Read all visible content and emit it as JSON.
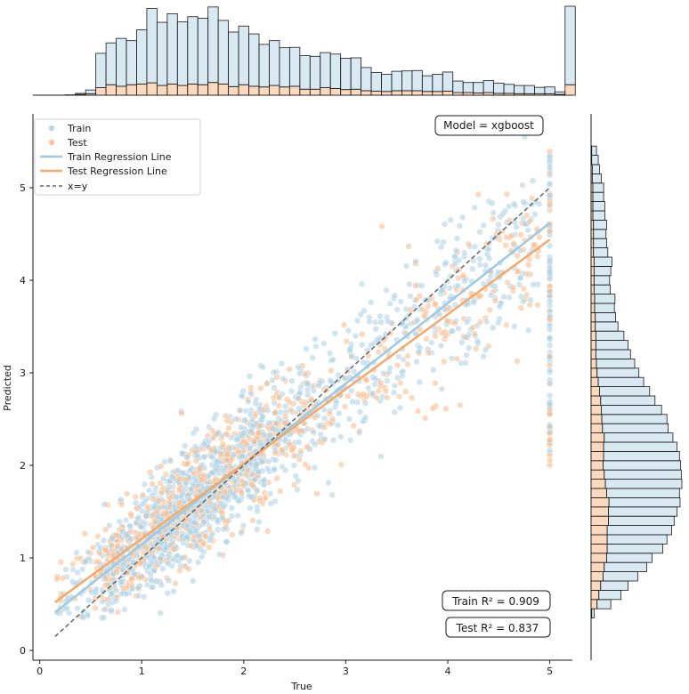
{
  "chart_data": {
    "type": "scatter",
    "title": "",
    "xlabel": "True",
    "ylabel": "Predicted",
    "xlim": [
      -0.1,
      5.2
    ],
    "ylim": [
      -0.1,
      5.85
    ],
    "xticks": [
      0,
      1,
      2,
      3,
      4,
      5
    ],
    "yticks": [
      0,
      1,
      2,
      3,
      4,
      5
    ],
    "tick_labels_x": [
      "0",
      "1",
      "2",
      "3",
      "4",
      "5"
    ],
    "tick_labels_y": [
      "0",
      "1",
      "2",
      "3",
      "4",
      "5"
    ],
    "grid": false,
    "legend_position": "top-left",
    "legend": [
      {
        "label": "Train",
        "kind": "marker",
        "color": "#b7d7e8"
      },
      {
        "label": "Test",
        "kind": "marker",
        "color": "#f8c49a"
      },
      {
        "label": "Train Regression Line",
        "kind": "line",
        "color": "#9ecae1"
      },
      {
        "label": "Test Regression Line",
        "kind": "line",
        "color": "#f4a96a"
      },
      {
        "label": "x=y",
        "kind": "dashed",
        "color": "#666666"
      }
    ],
    "model_label": "Model = xgboost",
    "train_r2_label": "Train R² = 0.909",
    "test_r2_label": "Test R² = 0.837",
    "colors": {
      "train": "#a9cfe3",
      "test": "#f7b98a",
      "train_line": "#9ecae1",
      "test_line": "#f4a96a",
      "diagonal": "#666666"
    },
    "regression_lines": [
      {
        "name": "Train Regression Line",
        "x": [
          0.15,
          5.0
        ],
        "y": [
          0.41,
          4.62
        ]
      },
      {
        "name": "Test Regression Line",
        "x": [
          0.15,
          5.0
        ],
        "y": [
          0.52,
          4.44
        ]
      },
      {
        "name": "x=y",
        "x": [
          0.15,
          5.0
        ],
        "y": [
          0.15,
          5.0
        ]
      }
    ],
    "top_histogram": {
      "bin_width": 0.1,
      "bin_start": 0.15,
      "train_counts": [
        0,
        1,
        3,
        10,
        92,
        112,
        128,
        118,
        145,
        199,
        169,
        188,
        170,
        180,
        178,
        202,
        170,
        146,
        157,
        140,
        114,
        120,
        105,
        104,
        90,
        88,
        94,
        92,
        84,
        84,
        62,
        50,
        46,
        52,
        53,
        54,
        42,
        46,
        51,
        31,
        27,
        28,
        32,
        27,
        24,
        22,
        22,
        17,
        18,
        7,
        210
      ],
      "test_counts": [
        0,
        0,
        2,
        4,
        20,
        28,
        24,
        28,
        30,
        33,
        26,
        30,
        26,
        30,
        28,
        34,
        30,
        23,
        28,
        24,
        22,
        26,
        22,
        24,
        16,
        16,
        20,
        18,
        15,
        16,
        12,
        11,
        10,
        12,
        12,
        12,
        10,
        10,
        11,
        7,
        7,
        6,
        7,
        5,
        5,
        4,
        4,
        4,
        4,
        2,
        28
      ]
    },
    "right_histogram": {
      "bin_width": 0.1,
      "bin_start": 0.35,
      "train_counts": [
        4,
        23,
        37,
        46,
        58,
        71,
        76,
        93,
        100,
        108,
        110,
        115,
        119,
        122,
        128,
        129,
        130,
        127,
        123,
        115,
        110,
        109,
        101,
        91,
        84,
        76,
        70,
        64,
        58,
        54,
        47,
        38,
        34,
        33,
        34,
        27,
        26,
        28,
        30,
        24,
        22,
        21,
        22,
        20,
        20,
        18,
        18,
        15,
        12,
        11,
        8
      ],
      "test_counts": [
        1,
        10,
        13,
        16,
        20,
        22,
        26,
        27,
        27,
        27,
        29,
        29,
        30,
        26,
        24,
        22,
        20,
        21,
        21,
        22,
        19,
        18,
        17,
        16,
        14,
        12,
        10,
        9,
        8,
        8,
        8,
        7,
        7,
        6,
        6,
        5,
        5,
        5,
        5,
        4,
        4,
        4,
        4,
        3,
        3,
        3,
        3,
        2,
        2,
        1,
        1
      ]
    }
  }
}
